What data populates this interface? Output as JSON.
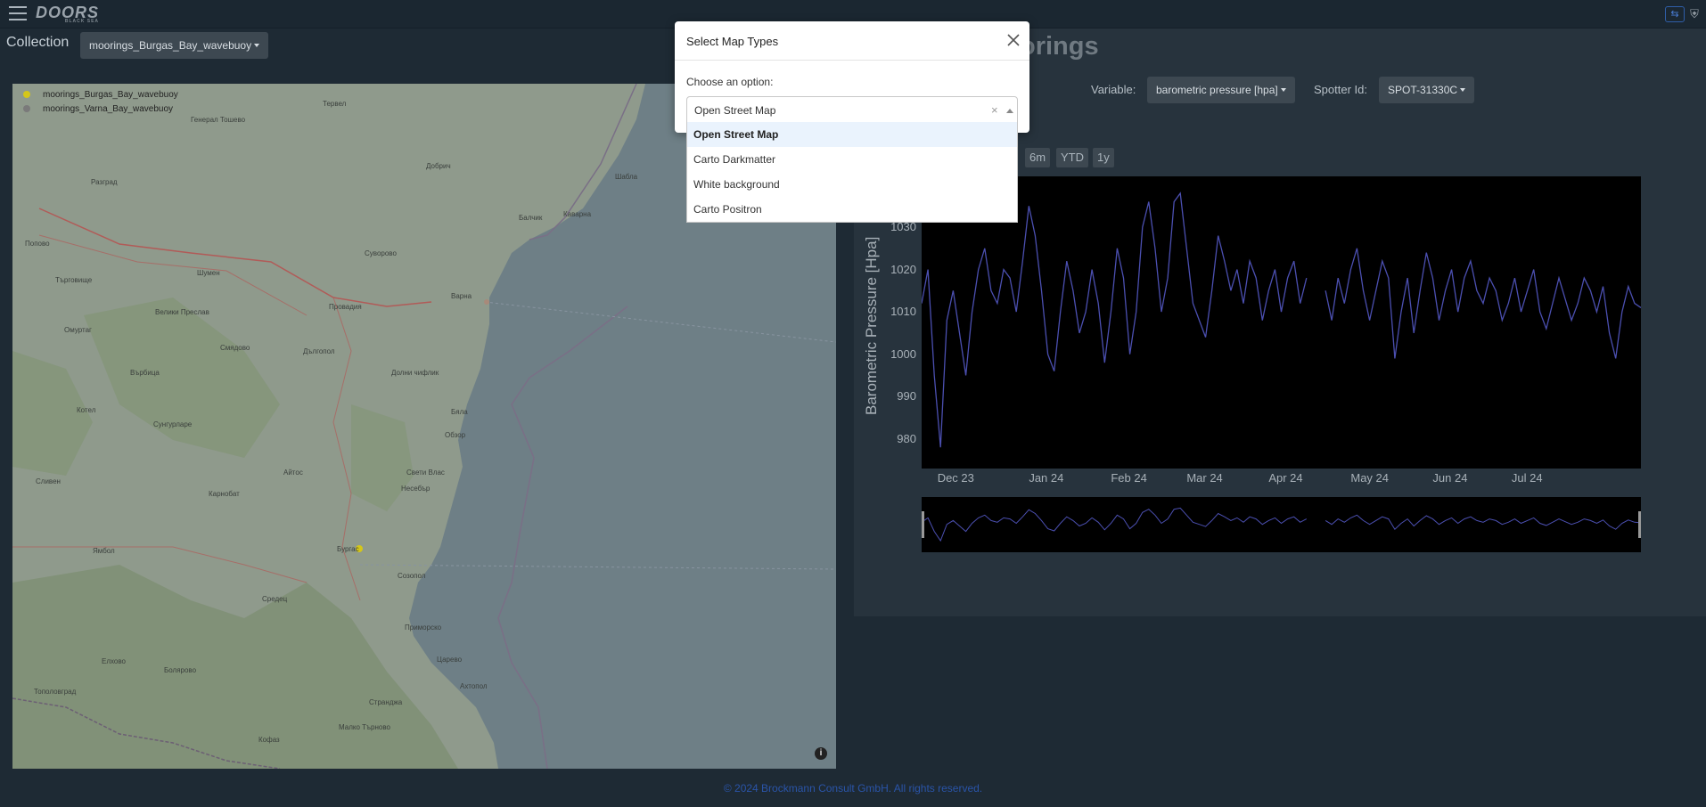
{
  "app": {
    "logo": "DOORS",
    "logo_sub": "BLACK SEA"
  },
  "collection": {
    "label": "Collection",
    "selected": "moorings_Burgas_Bay_wavebuoy"
  },
  "map": {
    "legend": [
      {
        "name": "moorings_Burgas_Bay_wavebuoy",
        "color": "#d4c619"
      },
      {
        "name": "moorings_Varna_Bay_wavebuoy",
        "color": "#7a7a7a"
      }
    ],
    "cities": [
      "Тервел",
      "Генерал Тошево",
      "Разград",
      "Добрич",
      "Шабла",
      "Попово",
      "Шумен",
      "Каварна",
      "Балчик",
      "Суворово",
      "Търговище",
      "Варна",
      "Провадия",
      "Омуртаг",
      "Велики Преслав",
      "Смядово",
      "Дългопол",
      "Върбица",
      "Долни чифлик",
      "Котел",
      "Бяла",
      "Обзор",
      "Сунгурларе",
      "Сливен",
      "Айтос",
      "Карнобат",
      "Несебър",
      "Свети Влас",
      "Ямбол",
      "Бургас",
      "Созопол",
      "Средец",
      "Елхово",
      "Приморско",
      "Болярово",
      "Царево",
      "Ахтопол",
      "Тополовград",
      "Малко Търново",
      "Кофаз",
      "Странджа"
    ],
    "info_icon": "info-icon"
  },
  "chart_panel": {
    "title": "orings",
    "variable_label": "Variable:",
    "variable_value": "barometric pressure [hpa]",
    "spotter_label": "Spotter Id:",
    "spotter_value": "SPOT-31330C",
    "ranges": [
      "6m",
      "YTD",
      "1y"
    ]
  },
  "chart_data": {
    "type": "line",
    "ylabel": "Barometric Pressure [Hpa]",
    "ylim": [
      973,
      1042
    ],
    "yticks": [
      980,
      990,
      1000,
      1010,
      1020,
      1030
    ],
    "xticks": [
      "Dec 23",
      "Jan 24",
      "Feb 24",
      "Mar 24",
      "Apr 24",
      "May 24",
      "Jun 24",
      "Jul 24"
    ],
    "series": [
      {
        "color": "#4b4fb0",
        "segments": [
          [
            [
              0,
              1012
            ],
            [
              2,
              1020
            ],
            [
              4,
              995
            ],
            [
              6,
              978
            ],
            [
              8,
              1008
            ],
            [
              10,
              1015
            ],
            [
              12,
              1005
            ],
            [
              14,
              995
            ],
            [
              16,
              1010
            ],
            [
              18,
              1020
            ],
            [
              20,
              1025
            ],
            [
              22,
              1015
            ],
            [
              24,
              1012
            ],
            [
              26,
              1020
            ],
            [
              28,
              1018
            ],
            [
              30,
              1010
            ],
            [
              32,
              1022
            ],
            [
              34,
              1035
            ],
            [
              36,
              1028
            ],
            [
              38,
              1015
            ],
            [
              40,
              1000
            ],
            [
              42,
              996
            ],
            [
              44,
              1010
            ],
            [
              46,
              1022
            ],
            [
              48,
              1015
            ],
            [
              50,
              1005
            ],
            [
              52,
              1010
            ],
            [
              54,
              1020
            ],
            [
              56,
              1012
            ],
            [
              58,
              998
            ],
            [
              60,
              1010
            ],
            [
              62,
              1025
            ],
            [
              64,
              1018
            ],
            [
              66,
              1000
            ],
            [
              68,
              1010
            ],
            [
              70,
              1030
            ],
            [
              72,
              1036
            ],
            [
              74,
              1025
            ],
            [
              76,
              1010
            ],
            [
              78,
              1018
            ],
            [
              80,
              1036
            ],
            [
              82,
              1038
            ],
            [
              84,
              1025
            ],
            [
              86,
              1012
            ],
            [
              88,
              1008
            ],
            [
              90,
              1004
            ],
            [
              92,
              1015
            ],
            [
              94,
              1028
            ],
            [
              96,
              1022
            ],
            [
              98,
              1015
            ],
            [
              100,
              1020
            ],
            [
              102,
              1012
            ],
            [
              104,
              1022
            ],
            [
              106,
              1018
            ],
            [
              108,
              1008
            ],
            [
              110,
              1015
            ],
            [
              112,
              1020
            ],
            [
              114,
              1010
            ],
            [
              116,
              1018
            ],
            [
              118,
              1022
            ],
            [
              120,
              1012
            ],
            [
              122,
              1018
            ]
          ],
          [
            [
              128,
              1015
            ],
            [
              130,
              1008
            ],
            [
              132,
              1018
            ],
            [
              134,
              1012
            ],
            [
              136,
              1020
            ],
            [
              138,
              1025
            ],
            [
              140,
              1015
            ],
            [
              142,
              1008
            ],
            [
              144,
              1015
            ],
            [
              146,
              1022
            ],
            [
              148,
              1018
            ],
            [
              150,
              999
            ],
            [
              152,
              1010
            ],
            [
              154,
              1018
            ],
            [
              156,
              1005
            ],
            [
              158,
              1015
            ],
            [
              160,
              1024
            ],
            [
              162,
              1018
            ],
            [
              164,
              1008
            ],
            [
              166,
              1015
            ],
            [
              168,
              1020
            ],
            [
              170,
              1010
            ],
            [
              172,
              1018
            ],
            [
              174,
              1022
            ],
            [
              176,
              1015
            ],
            [
              178,
              1012
            ],
            [
              180,
              1018
            ],
            [
              182,
              1015
            ],
            [
              184,
              1008
            ],
            [
              186,
              1012
            ],
            [
              188,
              1018
            ],
            [
              190,
              1010
            ],
            [
              192,
              1015
            ],
            [
              194,
              1020
            ],
            [
              196,
              1010
            ],
            [
              198,
              1006
            ],
            [
              200,
              1012
            ],
            [
              202,
              1018
            ],
            [
              204,
              1013
            ],
            [
              206,
              1008
            ],
            [
              208,
              1012
            ],
            [
              210,
              1018
            ],
            [
              212,
              1015
            ],
            [
              214,
              1010
            ],
            [
              216,
              1016
            ],
            [
              218,
              1005
            ],
            [
              220,
              999
            ],
            [
              222,
              1010
            ],
            [
              224,
              1016
            ],
            [
              226,
              1012
            ],
            [
              228,
              1011
            ]
          ]
        ]
      }
    ]
  },
  "modal": {
    "title": "Select Map Types",
    "prompt": "Choose an option:",
    "selected": "Open Street Map",
    "clear": "×",
    "options": [
      "Open Street Map",
      "Carto Darkmatter",
      "White background",
      "Carto Positron"
    ]
  },
  "footer": {
    "text": "© 2024 Brockmann Consult GmbH. All rights reserved."
  }
}
